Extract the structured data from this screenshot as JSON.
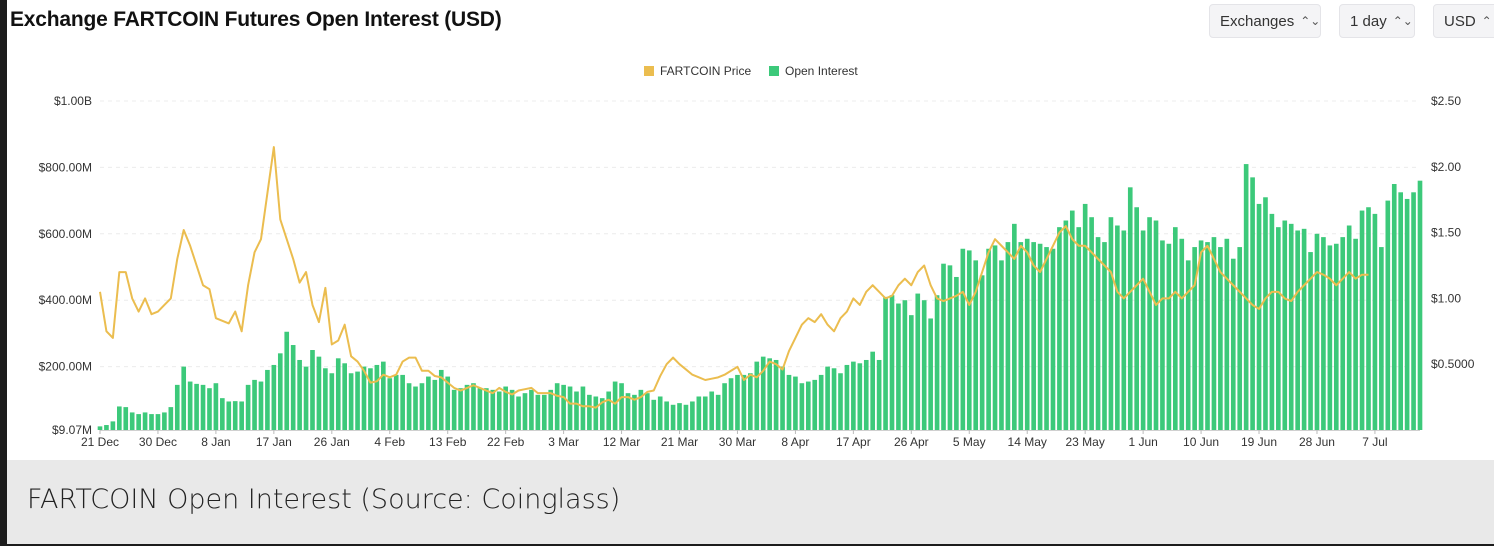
{
  "header": {
    "title": "Exchange FARTCOIN Futures Open Interest (USD)",
    "selectors": {
      "exchanges": "Exchanges",
      "interval": "1 day",
      "currency": "USD"
    }
  },
  "caption": "FARTCOIN Open Interest (Source: Coinglass)",
  "chart_data": {
    "type": "bar",
    "title": "Exchange FARTCOIN Futures Open Interest (USD)",
    "legend": {
      "placement": "top-center",
      "entries": [
        "FARTCOIN Price",
        "Open Interest"
      ]
    },
    "grid": true,
    "colors": {
      "open_interest": "#3cc97a",
      "price": "#ebbd4f"
    },
    "x_tick_labels": [
      "21 Dec",
      "30 Dec",
      "8 Jan",
      "17 Jan",
      "26 Jan",
      "4 Feb",
      "13 Feb",
      "22 Feb",
      "3 Mar",
      "12 Mar",
      "21 Mar",
      "30 Mar",
      "8 Apr",
      "17 Apr",
      "26 Apr",
      "5 May",
      "14 May",
      "23 May",
      "1 Jun",
      "10 Jun",
      "19 Jun",
      "28 Jun",
      "7 Jul"
    ],
    "y_left": {
      "label": "",
      "tick_labels": [
        "$9.07M",
        "$200.00M",
        "$400.00M",
        "$600.00M",
        "$800.00M",
        "$1.00B"
      ],
      "range": [
        9.07,
        1000
      ],
      "unit": "USD millions"
    },
    "y_right": {
      "label": "",
      "tick_labels": [
        "$0.5000",
        "$1.00",
        "$1.50",
        "$2.00",
        "$2.50"
      ],
      "range": [
        0,
        2.5
      ],
      "unit": "USD"
    },
    "series": [
      {
        "name": "Open Interest",
        "axis": "left",
        "start": "21 Dec",
        "step_days": 1,
        "values": [
          20,
          24,
          35,
          80,
          78,
          62,
          57,
          62,
          57,
          57,
          62,
          78,
          145,
          200,
          155,
          148,
          145,
          135,
          150,
          105,
          95,
          96,
          95,
          145,
          160,
          155,
          190,
          205,
          240,
          305,
          265,
          220,
          200,
          250,
          230,
          195,
          180,
          225,
          210,
          180,
          185,
          200,
          195,
          205,
          215,
          165,
          175,
          175,
          150,
          140,
          150,
          170,
          160,
          190,
          170,
          130,
          135,
          145,
          150,
          135,
          135,
          130,
          125,
          140,
          130,
          110,
          120,
          130,
          115,
          115,
          130,
          150,
          145,
          140,
          125,
          140,
          115,
          110,
          105,
          125,
          155,
          150,
          120,
          115,
          130,
          120,
          100,
          110,
          95,
          85,
          90,
          85,
          95,
          110,
          110,
          125,
          115,
          150,
          165,
          175,
          175,
          180,
          215,
          230,
          225,
          220,
          200,
          175,
          170,
          150,
          155,
          160,
          175,
          200,
          195,
          180,
          205,
          215,
          210,
          220,
          245,
          220,
          410,
          415,
          390,
          400,
          355,
          420,
          400,
          345,
          415,
          510,
          505,
          470,
          555,
          550,
          520,
          475,
          555,
          565,
          520,
          575,
          630,
          575,
          585,
          575,
          570,
          560,
          555,
          620,
          640,
          670,
          620,
          690,
          650,
          590,
          575,
          650,
          625,
          610,
          740,
          680,
          610,
          650,
          640,
          580,
          570,
          620,
          585,
          520,
          560,
          580,
          575,
          590,
          560,
          585,
          525,
          560,
          810,
          770,
          690,
          710,
          660,
          620,
          640,
          630,
          610,
          615,
          545,
          600,
          590,
          565,
          570,
          590,
          625,
          585,
          670,
          680,
          660,
          560,
          700,
          750,
          725,
          705,
          725,
          760
        ]
      },
      {
        "name": "FARTCOIN Price",
        "axis": "right",
        "start": "21 Dec",
        "step_days": 1,
        "values": [
          1.05,
          0.75,
          0.7,
          1.2,
          1.2,
          1.0,
          0.9,
          1.0,
          0.88,
          0.9,
          0.95,
          1.0,
          1.3,
          1.52,
          1.4,
          1.25,
          1.1,
          1.07,
          0.85,
          0.83,
          0.81,
          0.9,
          0.75,
          1.1,
          1.35,
          1.45,
          1.8,
          2.15,
          1.6,
          1.45,
          1.3,
          1.12,
          1.2,
          0.95,
          0.82,
          1.08,
          0.65,
          0.68,
          0.8,
          0.56,
          0.52,
          0.45,
          0.36,
          0.37,
          0.42,
          0.4,
          0.42,
          0.52,
          0.55,
          0.55,
          0.45,
          0.45,
          0.41,
          0.4,
          0.36,
          0.32,
          0.3,
          0.32,
          0.34,
          0.32,
          0.3,
          0.28,
          0.32,
          0.29,
          0.27,
          0.3,
          0.31,
          0.32,
          0.28,
          0.28,
          0.28,
          0.26,
          0.25,
          0.2,
          0.2,
          0.18,
          0.18,
          0.17,
          0.21,
          0.23,
          0.2,
          0.25,
          0.25,
          0.23,
          0.25,
          0.29,
          0.3,
          0.41,
          0.5,
          0.55,
          0.5,
          0.46,
          0.42,
          0.4,
          0.38,
          0.39,
          0.4,
          0.42,
          0.45,
          0.48,
          0.38,
          0.42,
          0.4,
          0.45,
          0.52,
          0.5,
          0.46,
          0.6,
          0.7,
          0.8,
          0.85,
          0.82,
          0.88,
          0.8,
          0.75,
          0.85,
          0.9,
          1.0,
          0.95,
          1.05,
          1.1,
          1.05,
          1.0,
          1.02,
          1.1,
          1.15,
          1.1,
          1.2,
          1.25,
          1.1,
          1.0,
          0.98,
          1.0,
          1.02,
          1.05,
          0.95,
          1.05,
          1.2,
          1.35,
          1.45,
          1.4,
          1.35,
          1.3,
          1.4,
          1.35,
          1.25,
          1.2,
          1.3,
          1.4,
          1.5,
          1.55,
          1.45,
          1.4,
          1.4,
          1.35,
          1.3,
          1.25,
          1.2,
          1.05,
          1.0,
          1.05,
          1.1,
          1.15,
          1.05,
          0.95,
          1.0,
          1.0,
          1.05,
          1.0,
          1.05,
          1.1,
          1.35,
          1.4,
          1.3,
          1.2,
          1.15,
          1.1,
          1.05,
          1.0,
          0.95,
          0.92,
          1.0,
          1.05,
          1.05,
          1.0,
          0.98,
          1.05,
          1.1,
          1.15,
          1.2,
          1.18,
          1.15,
          1.1,
          1.15,
          1.2,
          1.15,
          1.18,
          1.18
        ]
      }
    ]
  }
}
